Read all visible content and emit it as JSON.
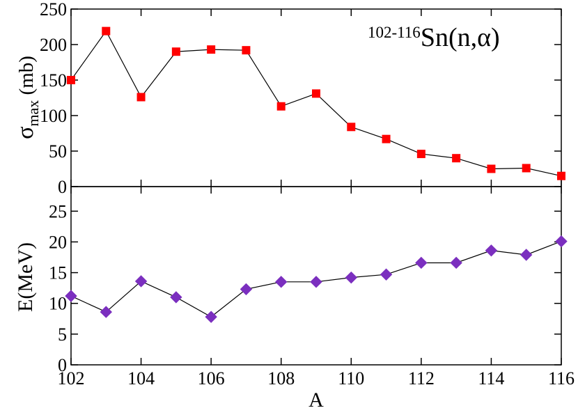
{
  "chart_data": [
    {
      "type": "line",
      "panel": "top",
      "annotation": {
        "superscript": "102-116",
        "text": "Sn(n,α)"
      },
      "ylabel": {
        "main": "σ",
        "sub": "max",
        "unit": " (mb)"
      },
      "ylim": [
        0,
        250
      ],
      "yticks": [
        0,
        50,
        100,
        150,
        200,
        250
      ],
      "xlim": [
        102,
        116
      ],
      "series": [
        {
          "name": "sigma_max",
          "marker": "square",
          "color": "#ff0000",
          "x": [
            102,
            103,
            104,
            105,
            106,
            107,
            108,
            109,
            110,
            111,
            112,
            113,
            114,
            115,
            116
          ],
          "y": [
            150,
            219,
            126,
            190,
            193,
            192,
            113,
            131,
            84,
            67,
            46,
            40,
            25,
            26,
            15
          ]
        }
      ]
    },
    {
      "type": "line",
      "panel": "bottom",
      "ylabel": {
        "main": "E(MeV)"
      },
      "ylim": [
        0,
        29
      ],
      "yticks": [
        0,
        5,
        10,
        15,
        20,
        25
      ],
      "xlim": [
        102,
        116
      ],
      "xticks": [
        102,
        104,
        106,
        108,
        110,
        112,
        114,
        116
      ],
      "xlabel": "A",
      "series": [
        {
          "name": "E",
          "marker": "diamond",
          "color": "#7b2fbf",
          "x": [
            102,
            103,
            104,
            105,
            106,
            107,
            108,
            109,
            110,
            111,
            112,
            113,
            114,
            115,
            116
          ],
          "y": [
            11.2,
            8.6,
            13.6,
            11.0,
            7.8,
            12.3,
            13.5,
            13.5,
            14.2,
            14.7,
            16.6,
            16.6,
            18.6,
            17.9,
            20.1
          ]
        }
      ]
    }
  ]
}
